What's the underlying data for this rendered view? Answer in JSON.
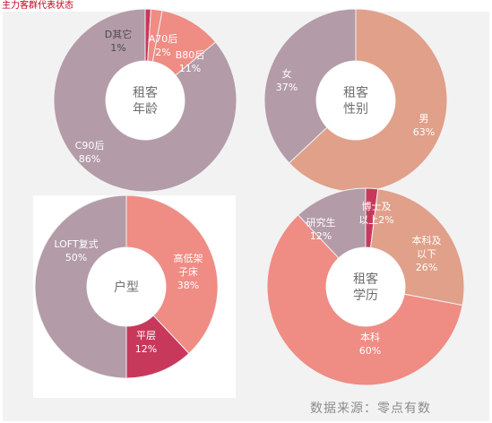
{
  "header": {
    "title": "主力客群代表状态"
  },
  "footer": {
    "source": "数据来源：零点有数"
  },
  "colors": {
    "mauve": "#b39ba8",
    "salmon": "#ef8c84",
    "crimson": "#c8385b",
    "peach": "#e0a089",
    "center": "#ffffff"
  },
  "chart_data": [
    {
      "type": "pie",
      "center_label": [
        "租客",
        "年龄"
      ],
      "slices": [
        {
          "label": [
            "D其它",
            "1%"
          ],
          "value": 1,
          "color": "#c8385b"
        },
        {
          "label": [
            "A70后",
            "2%"
          ],
          "value": 2,
          "color": "#ef8c84"
        },
        {
          "label": [
            "B80后",
            "11%"
          ],
          "value": 11,
          "color": "#ef8c84"
        },
        {
          "label": [
            "C90后",
            "86%"
          ],
          "value": 86,
          "color": "#b39ba8"
        }
      ]
    },
    {
      "type": "pie",
      "center_label": [
        "租客",
        "性别"
      ],
      "slices": [
        {
          "label": [
            "男",
            "63%"
          ],
          "value": 63,
          "color": "#e0a089"
        },
        {
          "label": [
            "女",
            "37%"
          ],
          "value": 37,
          "color": "#b39ba8"
        }
      ]
    },
    {
      "type": "pie",
      "center_label": [
        "户型"
      ],
      "slices": [
        {
          "label": [
            "高低架",
            "子床",
            "38%"
          ],
          "value": 38,
          "color": "#ef8c84"
        },
        {
          "label": [
            "平层",
            "12%"
          ],
          "value": 12,
          "color": "#c8385b"
        },
        {
          "label": [
            "LOFT复式",
            "50%"
          ],
          "value": 50,
          "color": "#b39ba8"
        }
      ]
    },
    {
      "type": "pie",
      "center_label": [
        "租客",
        "学历"
      ],
      "slices": [
        {
          "label": [
            "博士及",
            "以上2%"
          ],
          "value": 2,
          "color": "#c8385b"
        },
        {
          "label": [
            "本科及",
            "以下",
            "26%"
          ],
          "value": 26,
          "color": "#e0a089"
        },
        {
          "label": [
            "本科",
            "60%"
          ],
          "value": 60,
          "color": "#ef8c84"
        },
        {
          "label": [
            "研究生",
            "12%"
          ],
          "value": 12,
          "color": "#b39ba8"
        }
      ]
    }
  ]
}
